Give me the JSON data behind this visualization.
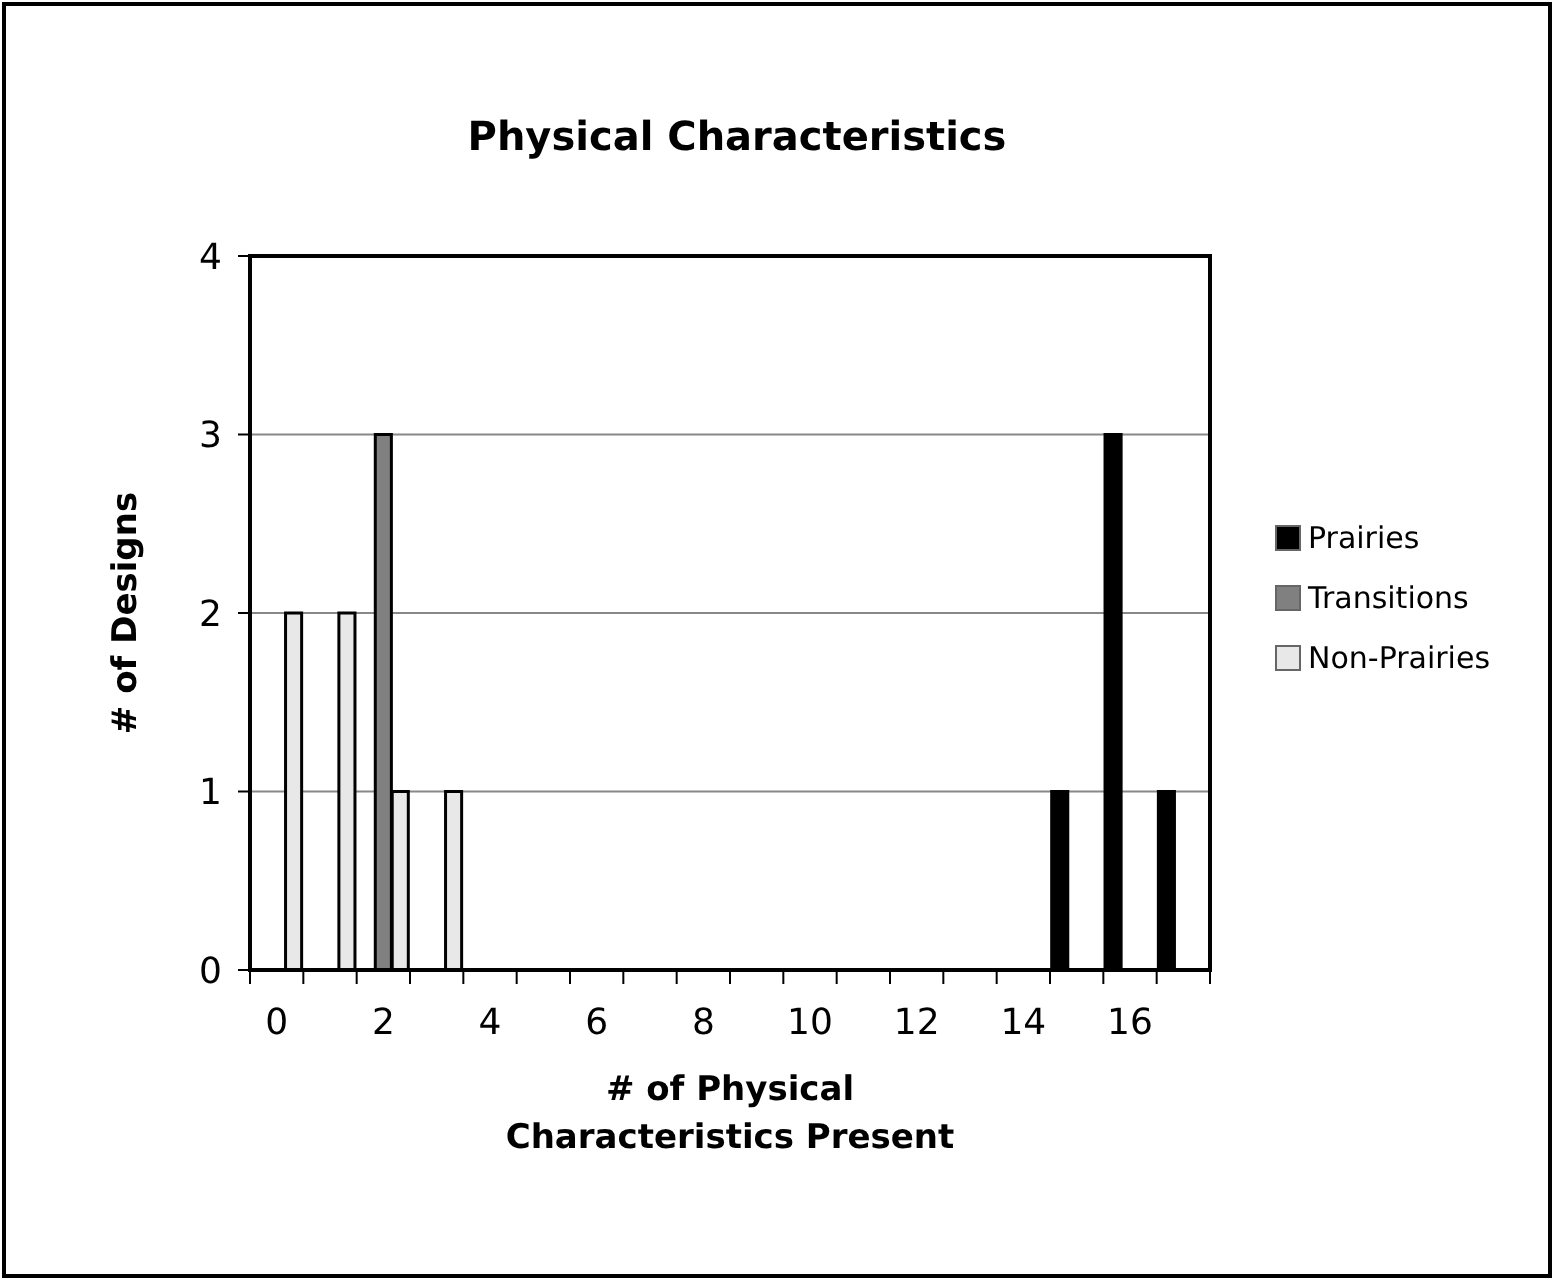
{
  "chart_data": {
    "type": "bar",
    "title": "Physical Characteristics",
    "xlabel": "# of Physical\nCharacteristics Present",
    "ylabel": "# of Designs",
    "categories": [
      "0",
      null,
      "2",
      null,
      "4",
      null,
      "6",
      null,
      "8",
      null,
      "10",
      null,
      "12",
      null,
      "14",
      null,
      "16",
      null
    ],
    "series": [
      {
        "name": "Prairies",
        "color": "#000000",
        "values": [
          0,
          0,
          0,
          0,
          0,
          0,
          0,
          0,
          0,
          0,
          0,
          0,
          0,
          0,
          0,
          1,
          3,
          1
        ]
      },
      {
        "name": "Transitions",
        "color": "#808080",
        "values": [
          0,
          0,
          3,
          0,
          0,
          0,
          0,
          0,
          0,
          0,
          0,
          0,
          0,
          0,
          0,
          0,
          0,
          0
        ]
      },
      {
        "name": "Non-Prairies",
        "color": "#e8e8e8",
        "values": [
          2,
          2,
          1,
          1,
          0,
          0,
          0,
          0,
          0,
          0,
          0,
          0,
          0,
          0,
          0,
          0,
          0,
          0
        ]
      }
    ],
    "ylim": [
      0,
      4
    ],
    "yticks": [
      0,
      1,
      2,
      3,
      4
    ],
    "grid": "y",
    "legend": "right"
  }
}
